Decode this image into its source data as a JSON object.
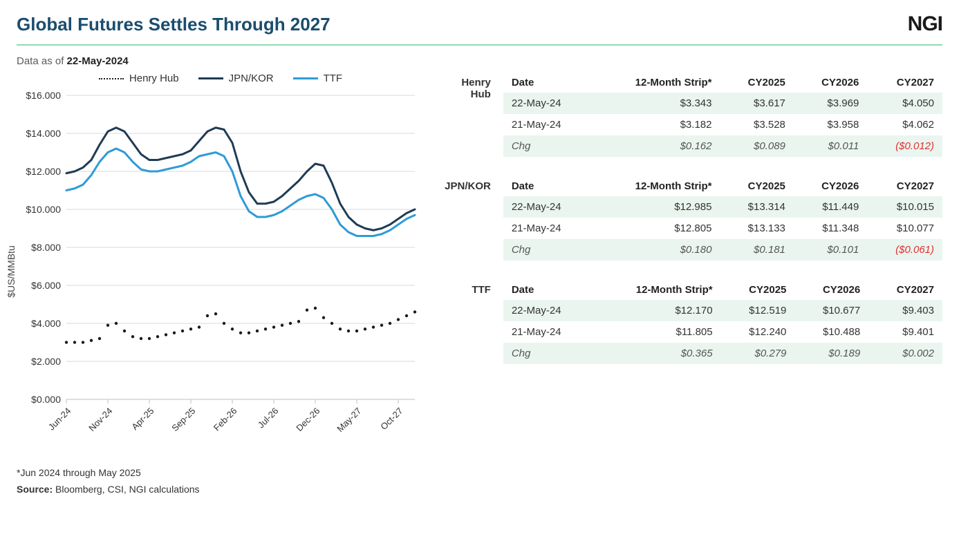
{
  "title": "Global Futures Settles Through 2027",
  "logo": "NGI",
  "asof_label": "Data as of",
  "asof_date": "22-May-2024",
  "footnote": "*Jun 2024 through May 2025",
  "source_label": "Source:",
  "source_text": "Bloomberg, CSI, NGI calculations",
  "chart": {
    "type": "line",
    "ylabel": "$US/MMBtu",
    "ylim": [
      0,
      16
    ],
    "ytick_step": 2,
    "yticks": [
      "$0.000",
      "$2.000",
      "$4.000",
      "$6.000",
      "$8.000",
      "$10.000",
      "$12.000",
      "$14.000",
      "$16.000"
    ],
    "xticks": [
      "Jun-24",
      "Nov-24",
      "Apr-25",
      "Sep-25",
      "Feb-26",
      "Jul-26",
      "Dec-26",
      "May-27",
      "Oct-27"
    ],
    "xcount": 43,
    "grid_color": "#d9d9d9",
    "background": "#ffffff",
    "series": [
      {
        "name": "Henry Hub",
        "legend": "Henry Hub",
        "color": "#1a1a1a",
        "style": "dotted",
        "width": 2.5,
        "values": [
          3.0,
          3.0,
          3.0,
          3.1,
          3.2,
          3.9,
          4.0,
          3.6,
          3.3,
          3.2,
          3.2,
          3.3,
          3.4,
          3.5,
          3.6,
          3.7,
          3.8,
          4.4,
          4.5,
          4.0,
          3.7,
          3.5,
          3.5,
          3.6,
          3.7,
          3.8,
          3.9,
          4.0,
          4.1,
          4.7,
          4.8,
          4.3,
          4.0,
          3.7,
          3.6,
          3.6,
          3.7,
          3.8,
          3.9,
          4.0,
          4.2,
          4.4,
          4.6
        ]
      },
      {
        "name": "JPN/KOR",
        "legend": "JPN/KOR",
        "color": "#1f3b54",
        "style": "solid",
        "width": 3,
        "values": [
          11.9,
          12.0,
          12.2,
          12.6,
          13.4,
          14.1,
          14.3,
          14.1,
          13.5,
          12.9,
          12.6,
          12.6,
          12.7,
          12.8,
          12.9,
          13.1,
          13.6,
          14.1,
          14.3,
          14.2,
          13.5,
          12.0,
          10.9,
          10.3,
          10.3,
          10.4,
          10.7,
          11.1,
          11.5,
          12.0,
          12.4,
          12.3,
          11.4,
          10.3,
          9.6,
          9.2,
          9.0,
          8.9,
          9.0,
          9.2,
          9.5,
          9.8,
          10.0
        ]
      },
      {
        "name": "TTF",
        "legend": "TTF",
        "color": "#2e9bd6",
        "style": "solid",
        "width": 3,
        "values": [
          11.0,
          11.1,
          11.3,
          11.8,
          12.5,
          13.0,
          13.2,
          13.0,
          12.5,
          12.1,
          12.0,
          12.0,
          12.1,
          12.2,
          12.3,
          12.5,
          12.8,
          12.9,
          13.0,
          12.8,
          12.0,
          10.7,
          9.9,
          9.6,
          9.6,
          9.7,
          9.9,
          10.2,
          10.5,
          10.7,
          10.8,
          10.6,
          10.0,
          9.2,
          8.8,
          8.6,
          8.6,
          8.6,
          8.7,
          8.9,
          9.2,
          9.5,
          9.7
        ]
      }
    ]
  },
  "tables": {
    "columns": [
      "Date",
      "12-Month Strip*",
      "CY2025",
      "CY2026",
      "CY2027"
    ],
    "groups": [
      {
        "label": "Henry Hub",
        "rows": [
          {
            "band": true,
            "cells": [
              "22-May-24",
              "$3.343",
              "$3.617",
              "$3.969",
              "$4.050"
            ]
          },
          {
            "band": false,
            "cells": [
              "21-May-24",
              "$3.182",
              "$3.528",
              "$3.958",
              "$4.062"
            ]
          },
          {
            "band": true,
            "chg": true,
            "cells": [
              "Chg",
              "$0.162",
              "$0.089",
              "$0.011",
              "($0.012)"
            ],
            "neg": [
              false,
              false,
              false,
              false,
              true
            ]
          }
        ]
      },
      {
        "label": "JPN/KOR",
        "rows": [
          {
            "band": true,
            "cells": [
              "22-May-24",
              "$12.985",
              "$13.314",
              "$11.449",
              "$10.015"
            ]
          },
          {
            "band": false,
            "cells": [
              "21-May-24",
              "$12.805",
              "$13.133",
              "$11.348",
              "$10.077"
            ]
          },
          {
            "band": true,
            "chg": true,
            "cells": [
              "Chg",
              "$0.180",
              "$0.181",
              "$0.101",
              "($0.061)"
            ],
            "neg": [
              false,
              false,
              false,
              false,
              true
            ]
          }
        ]
      },
      {
        "label": "TTF",
        "rows": [
          {
            "band": true,
            "cells": [
              "22-May-24",
              "$12.170",
              "$12.519",
              "$10.677",
              "$9.403"
            ]
          },
          {
            "band": false,
            "cells": [
              "21-May-24",
              "$11.805",
              "$12.240",
              "$10.488",
              "$9.401"
            ]
          },
          {
            "band": true,
            "chg": true,
            "cells": [
              "Chg",
              "$0.365",
              "$0.279",
              "$0.189",
              "$0.002"
            ],
            "neg": [
              false,
              false,
              false,
              false,
              false
            ]
          }
        ]
      }
    ]
  }
}
